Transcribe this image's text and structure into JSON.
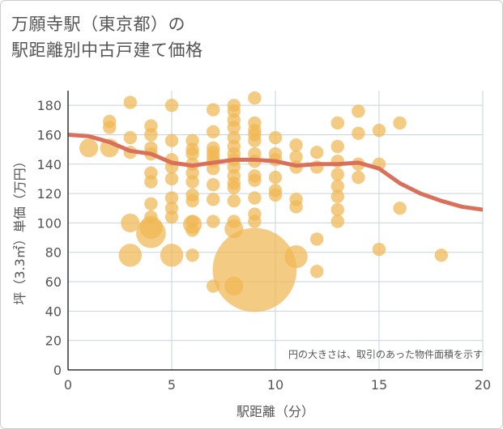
{
  "title_line1": "万願寺駅（東京都）の",
  "title_line2": "駅距離別中古戸建て価格",
  "chart_data": {
    "type": "scatter",
    "title": "万願寺駅（東京都）の駅距離別中古戸建て価格",
    "xlabel": "駅距離（分）",
    "ylabel": "坪（3.3㎡）単価（万円）",
    "xlim": [
      0,
      20
    ],
    "ylim": [
      0,
      190
    ],
    "x_ticks": [
      "0",
      "5",
      "10",
      "15",
      "20"
    ],
    "y_ticks": [
      "0",
      "20",
      "40",
      "60",
      "80",
      "100",
      "120",
      "140",
      "160",
      "180"
    ],
    "note": "円の大きさは、取引のあった物件面積を示す",
    "bubble_color": "#f0b752",
    "line_color": "#d9705a",
    "points": [
      {
        "x": 1,
        "y": 151,
        "s": 2
      },
      {
        "x": 2,
        "y": 169,
        "s": 1
      },
      {
        "x": 2,
        "y": 165,
        "s": 1
      },
      {
        "x": 2,
        "y": 151,
        "s": 2
      },
      {
        "x": 3,
        "y": 182,
        "s": 1
      },
      {
        "x": 3,
        "y": 158,
        "s": 1
      },
      {
        "x": 3,
        "y": 148,
        "s": 1
      },
      {
        "x": 3,
        "y": 100,
        "s": 2
      },
      {
        "x": 3,
        "y": 78,
        "s": 3
      },
      {
        "x": 4,
        "y": 166,
        "s": 1
      },
      {
        "x": 4,
        "y": 160,
        "s": 1
      },
      {
        "x": 4,
        "y": 151,
        "s": 1
      },
      {
        "x": 4,
        "y": 147,
        "s": 1
      },
      {
        "x": 4,
        "y": 134,
        "s": 1
      },
      {
        "x": 4,
        "y": 128,
        "s": 1
      },
      {
        "x": 4,
        "y": 113,
        "s": 1
      },
      {
        "x": 4,
        "y": 104,
        "s": 1
      },
      {
        "x": 4,
        "y": 97,
        "s": 3
      },
      {
        "x": 4,
        "y": 93,
        "s": 5
      },
      {
        "x": 5,
        "y": 180,
        "s": 1
      },
      {
        "x": 5,
        "y": 156,
        "s": 1
      },
      {
        "x": 5,
        "y": 143,
        "s": 1
      },
      {
        "x": 5,
        "y": 138,
        "s": 1
      },
      {
        "x": 5,
        "y": 130,
        "s": 1
      },
      {
        "x": 5,
        "y": 117,
        "s": 1
      },
      {
        "x": 5,
        "y": 110,
        "s": 1
      },
      {
        "x": 5,
        "y": 104,
        "s": 1
      },
      {
        "x": 5,
        "y": 78,
        "s": 3
      },
      {
        "x": 6,
        "y": 156,
        "s": 1
      },
      {
        "x": 6,
        "y": 150,
        "s": 1
      },
      {
        "x": 6,
        "y": 147,
        "s": 1
      },
      {
        "x": 6,
        "y": 140,
        "s": 1
      },
      {
        "x": 6,
        "y": 134,
        "s": 1
      },
      {
        "x": 6,
        "y": 128,
        "s": 1
      },
      {
        "x": 6,
        "y": 119,
        "s": 1
      },
      {
        "x": 6,
        "y": 115,
        "s": 1
      },
      {
        "x": 6,
        "y": 101,
        "s": 1
      },
      {
        "x": 6,
        "y": 99,
        "s": 2
      },
      {
        "x": 6,
        "y": 95,
        "s": 1
      },
      {
        "x": 6,
        "y": 78,
        "s": 1
      },
      {
        "x": 7,
        "y": 177,
        "s": 1
      },
      {
        "x": 7,
        "y": 162,
        "s": 1
      },
      {
        "x": 7,
        "y": 151,
        "s": 1
      },
      {
        "x": 7,
        "y": 148,
        "s": 1
      },
      {
        "x": 7,
        "y": 145,
        "s": 1
      },
      {
        "x": 7,
        "y": 142,
        "s": 1
      },
      {
        "x": 7,
        "y": 137,
        "s": 1
      },
      {
        "x": 7,
        "y": 126,
        "s": 1
      },
      {
        "x": 7,
        "y": 116,
        "s": 1
      },
      {
        "x": 7,
        "y": 101,
        "s": 1
      },
      {
        "x": 7,
        "y": 57,
        "s": 1
      },
      {
        "x": 8,
        "y": 180,
        "s": 1
      },
      {
        "x": 8,
        "y": 176,
        "s": 1
      },
      {
        "x": 8,
        "y": 170,
        "s": 1
      },
      {
        "x": 8,
        "y": 165,
        "s": 1
      },
      {
        "x": 8,
        "y": 158,
        "s": 1
      },
      {
        "x": 8,
        "y": 152,
        "s": 1
      },
      {
        "x": 8,
        "y": 147,
        "s": 1
      },
      {
        "x": 8,
        "y": 143,
        "s": 1
      },
      {
        "x": 8,
        "y": 138,
        "s": 1
      },
      {
        "x": 8,
        "y": 132,
        "s": 1
      },
      {
        "x": 8,
        "y": 127,
        "s": 1
      },
      {
        "x": 8,
        "y": 124,
        "s": 1
      },
      {
        "x": 8,
        "y": 115,
        "s": 1
      },
      {
        "x": 8,
        "y": 101,
        "s": 1
      },
      {
        "x": 8,
        "y": 96,
        "s": 2
      },
      {
        "x": 8,
        "y": 57,
        "s": 2
      },
      {
        "x": 9,
        "y": 185,
        "s": 1
      },
      {
        "x": 9,
        "y": 168,
        "s": 1
      },
      {
        "x": 9,
        "y": 163,
        "s": 1
      },
      {
        "x": 9,
        "y": 160,
        "s": 1
      },
      {
        "x": 9,
        "y": 156,
        "s": 1
      },
      {
        "x": 9,
        "y": 147,
        "s": 1
      },
      {
        "x": 9,
        "y": 142,
        "s": 1
      },
      {
        "x": 9,
        "y": 132,
        "s": 1
      },
      {
        "x": 9,
        "y": 129,
        "s": 1
      },
      {
        "x": 9,
        "y": 117,
        "s": 1
      },
      {
        "x": 9,
        "y": 106,
        "s": 1
      },
      {
        "x": 9,
        "y": 101,
        "s": 1
      },
      {
        "x": 9,
        "y": 68,
        "s": 40
      },
      {
        "x": 10,
        "y": 158,
        "s": 1
      },
      {
        "x": 10,
        "y": 147,
        "s": 1
      },
      {
        "x": 10,
        "y": 143,
        "s": 1
      },
      {
        "x": 10,
        "y": 131,
        "s": 1
      },
      {
        "x": 10,
        "y": 122,
        "s": 1
      },
      {
        "x": 10,
        "y": 119,
        "s": 1
      },
      {
        "x": 11,
        "y": 153,
        "s": 1
      },
      {
        "x": 11,
        "y": 145,
        "s": 1
      },
      {
        "x": 11,
        "y": 138,
        "s": 1
      },
      {
        "x": 11,
        "y": 116,
        "s": 1
      },
      {
        "x": 11,
        "y": 111,
        "s": 1
      },
      {
        "x": 11,
        "y": 77,
        "s": 3
      },
      {
        "x": 12,
        "y": 148,
        "s": 1
      },
      {
        "x": 12,
        "y": 138,
        "s": 1
      },
      {
        "x": 12,
        "y": 89,
        "s": 1
      },
      {
        "x": 12,
        "y": 67,
        "s": 1
      },
      {
        "x": 13,
        "y": 168,
        "s": 1
      },
      {
        "x": 13,
        "y": 152,
        "s": 1
      },
      {
        "x": 13,
        "y": 142,
        "s": 1
      },
      {
        "x": 13,
        "y": 133,
        "s": 1
      },
      {
        "x": 13,
        "y": 125,
        "s": 1
      },
      {
        "x": 13,
        "y": 118,
        "s": 1
      },
      {
        "x": 13,
        "y": 109,
        "s": 1
      },
      {
        "x": 13,
        "y": 101,
        "s": 1
      },
      {
        "x": 14,
        "y": 176,
        "s": 1
      },
      {
        "x": 14,
        "y": 161,
        "s": 1
      },
      {
        "x": 14,
        "y": 140,
        "s": 1
      },
      {
        "x": 14,
        "y": 131,
        "s": 1
      },
      {
        "x": 15,
        "y": 163,
        "s": 1
      },
      {
        "x": 15,
        "y": 140,
        "s": 1
      },
      {
        "x": 15,
        "y": 82,
        "s": 1
      },
      {
        "x": 16,
        "y": 168,
        "s": 1
      },
      {
        "x": 16,
        "y": 110,
        "s": 1
      },
      {
        "x": 18,
        "y": 78,
        "s": 1
      }
    ],
    "trend": {
      "x": [
        0,
        1,
        2,
        3,
        4,
        5,
        6,
        7,
        8,
        9,
        10,
        11,
        12,
        13,
        14,
        15,
        16,
        17,
        18,
        19,
        20
      ],
      "y": [
        160,
        159,
        155,
        149,
        147,
        141,
        139,
        141,
        143,
        143,
        142,
        139,
        140,
        140,
        141,
        137,
        127,
        120,
        115,
        111,
        109
      ]
    }
  }
}
